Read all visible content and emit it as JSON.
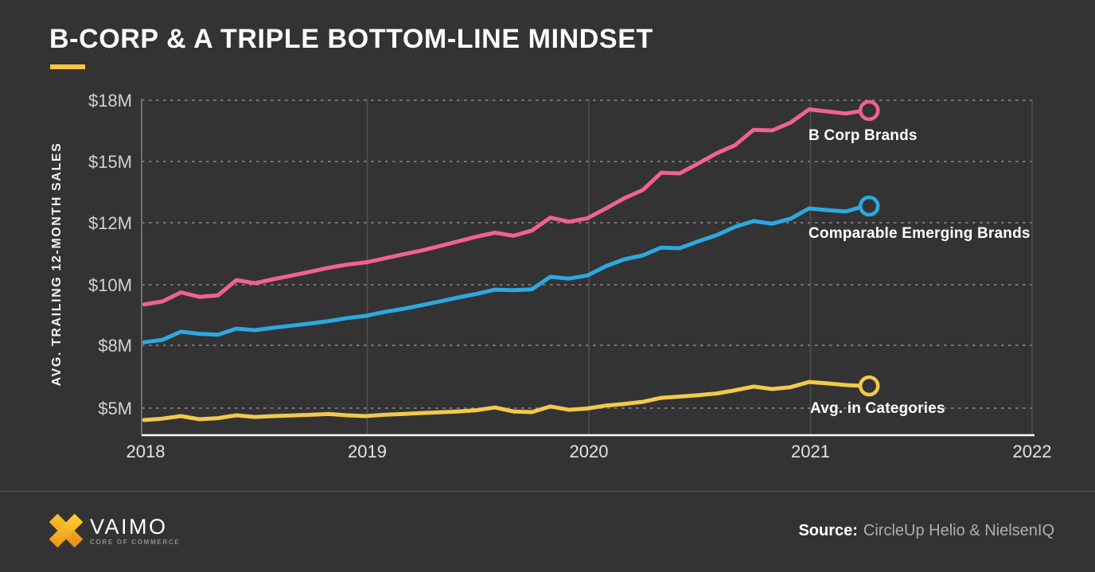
{
  "page": {
    "background_color": "#333333"
  },
  "header": {
    "title": "B-CORP & A TRIPLE BOTTOM-LINE MINDSET",
    "accent_color": "#F8C63F"
  },
  "chart_data": {
    "type": "line",
    "ylabel": "AVG. TRAILING 12-MONTH SALES",
    "units": "USD millions, avg. trailing 12-month sales",
    "x_ticks": [
      "2018",
      "2019",
      "2020",
      "2021",
      "2022"
    ],
    "y_ticks": [
      {
        "label": "$18M",
        "value": 18
      },
      {
        "label": "$15M",
        "value": 15
      },
      {
        "label": "$12M",
        "value": 12
      },
      {
        "label": "$10M",
        "value": 10
      },
      {
        "label": "$8M",
        "value": 8
      },
      {
        "label": "$5M",
        "value": 5
      }
    ],
    "y_axis_note": "tick labels are equally spaced (non-linear value scale)",
    "grid": {
      "horizontal": "dashed at each y tick",
      "vertical": "solid at year ticks"
    },
    "series_start": "2018-01",
    "series_interval": "monthly",
    "legend_position": "inline labels at line ends",
    "series": [
      {
        "name": "B Corp Brands",
        "color": "#F06292",
        "values": [
          9.35,
          9.45,
          9.75,
          9.6,
          9.65,
          10.15,
          10.05,
          10.18,
          10.3,
          10.42,
          10.55,
          10.65,
          10.72,
          10.85,
          10.98,
          11.1,
          11.25,
          11.4,
          11.55,
          11.68,
          11.58,
          11.75,
          12.25,
          12.05,
          12.22,
          12.7,
          13.2,
          13.6,
          14.45,
          14.42,
          14.9,
          15.4,
          15.8,
          16.55,
          16.52,
          16.9,
          17.55,
          17.45,
          17.35,
          17.5
        ]
      },
      {
        "name": "Comparable Emerging Brands",
        "color": "#2CA9E1",
        "values": [
          8.1,
          8.18,
          8.45,
          8.38,
          8.35,
          8.55,
          8.5,
          8.58,
          8.65,
          8.72,
          8.8,
          8.9,
          8.97,
          9.1,
          9.2,
          9.32,
          9.45,
          9.58,
          9.7,
          9.84,
          9.82,
          9.85,
          10.26,
          10.2,
          10.3,
          10.6,
          10.82,
          10.95,
          11.2,
          11.18,
          11.4,
          11.6,
          11.87,
          12.08,
          11.97,
          12.2,
          12.7,
          12.62,
          12.55,
          12.82
        ]
      },
      {
        "name": "Avg. in Categories",
        "color": "#F2C94C",
        "values": [
          4.43,
          4.5,
          4.62,
          4.47,
          4.52,
          4.66,
          4.58,
          4.62,
          4.65,
          4.68,
          4.72,
          4.66,
          4.62,
          4.68,
          4.72,
          4.76,
          4.8,
          4.84,
          4.9,
          5.03,
          4.84,
          4.81,
          5.08,
          4.92,
          4.98,
          5.12,
          5.2,
          5.3,
          5.49,
          5.55,
          5.62,
          5.7,
          5.85,
          6.03,
          5.91,
          6.0,
          6.25,
          6.18,
          6.1,
          6.06
        ]
      }
    ]
  },
  "footer": {
    "logo": {
      "brand": "VAIMO",
      "tagline": "CORE OF COMMERCE",
      "icon": "x-mark",
      "icon_colors": [
        "#FBCB35",
        "#EE9C1C"
      ]
    },
    "source_label": "Source:",
    "source_value": "CircleUp Helio & NielsenIQ"
  }
}
